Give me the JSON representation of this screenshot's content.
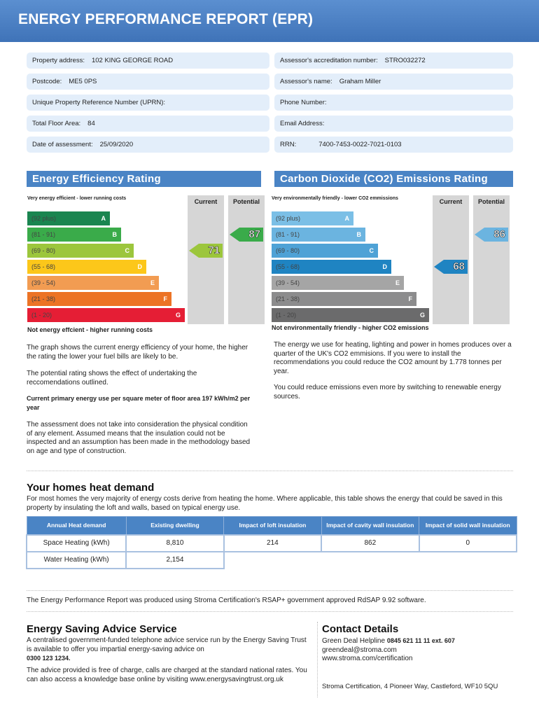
{
  "header": {
    "title": "ENERGY PERFORMANCE REPORT (EPR)"
  },
  "info_left": [
    {
      "label": "Property address:",
      "value": "102 KING GEORGE ROAD"
    },
    {
      "label": "Postcode:",
      "value": "ME5 0PS"
    },
    {
      "label": "Unique Property Reference Number (UPRN):",
      "value": ""
    },
    {
      "label": "Total Floor Area:",
      "value": "84"
    },
    {
      "label": "Date of assessment:",
      "value": "25/09/2020"
    }
  ],
  "info_right": [
    {
      "label": "Assessor's accreditation number:",
      "value": "STRO032272"
    },
    {
      "label": "Assessor's name:",
      "value": "Graham Miller"
    },
    {
      "label": "Phone Number:",
      "value": ""
    },
    {
      "label": "Email Address:",
      "value": ""
    },
    {
      "label": "RRN:",
      "value": "7400-7453-0022-7021-0103"
    }
  ],
  "energy": {
    "title": "Energy Efficiency Rating",
    "top_note": "Very energy efficient - lower running costs",
    "bottom_note": "Not energy effcient - higher running costs",
    "current_label": "Current",
    "potential_label": "Potential",
    "current": 71,
    "potential": 87,
    "current_color": "#9cc63c",
    "potential_color": "#3aab4a",
    "bands": [
      {
        "range": "(92 plus)",
        "letter": "A",
        "color": "#1a8550"
      },
      {
        "range": "(81 - 91)",
        "letter": "B",
        "color": "#3aab4a"
      },
      {
        "range": "(69 - 80)",
        "letter": "C",
        "color": "#9cc63c"
      },
      {
        "range": "(55 - 68)",
        "letter": "D",
        "color": "#fcc71a"
      },
      {
        "range": "(39 - 54)",
        "letter": "E",
        "color": "#f29c52"
      },
      {
        "range": "(21 - 38)",
        "letter": "F",
        "color": "#ec7325"
      },
      {
        "range": "(1 - 20)",
        "letter": "G",
        "color": "#e51e35"
      }
    ]
  },
  "co2": {
    "title": "Carbon Dioxide (CO2) Emissions Rating",
    "top_note": "Very environmentally friendly - lower CO2 emmissions",
    "bottom_note": "Not environmentally friendly - higher CO2 emissions",
    "current_label": "Current",
    "potential_label": "Potential",
    "current": 68,
    "potential": 86,
    "current_color": "#1f84c2",
    "potential_color": "#6bb4e0",
    "bands": [
      {
        "range": "(92 plus)",
        "letter": "A",
        "color": "#7bbfe6"
      },
      {
        "range": "(81 - 91)",
        "letter": "B",
        "color": "#6bb4e0"
      },
      {
        "range": "(69 - 80)",
        "letter": "C",
        "color": "#4ea2d6"
      },
      {
        "range": "(55 - 68)",
        "letter": "D",
        "color": "#1f84c2"
      },
      {
        "range": "(39 - 54)",
        "letter": "E",
        "color": "#a5a5a5"
      },
      {
        "range": "(21 - 38)",
        "letter": "F",
        "color": "#8c8c8d"
      },
      {
        "range": "(1 - 20)",
        "letter": "G",
        "color": "#6b6b6c"
      }
    ]
  },
  "left_text": {
    "p1": "The graph shows the current energy efficiency of your home, the higher the rating the lower your fuel bills are likely to be.",
    "p2": "The potential rating shows the effect of undertaking the reccomendations outlined.",
    "p3": "Current primary energy use per square meter of floor area 197 kWh/m2 per year",
    "p4": "The assessment does not take into consideration the physical condition of any element. Assumed means that the insulation could not be inspected and an assumption has been made in the methodology based on age and type of construction."
  },
  "right_text": {
    "p1": "The energy we use for heating, lighting and power in homes produces over a quarter of the UK's CO2 emmisions. If you were to install the recommendations you could reduce the CO2 amount by 1.778 tonnes per year.",
    "p2": "You could reduce emissions even more by switching to renewable energy sources."
  },
  "heat": {
    "title": "Your homes heat demand",
    "intro": "For most homes the very majority of energy costs derive from heating the home. Where applicable, this table shows the energy that could be saved in this property by insulating the loft and walls, based on typical energy use.",
    "headers": [
      "Annual Heat demand",
      "Existing dwelling",
      "Impact of loft insulation",
      "Impact of cavity wall insulation",
      "Impact of solid wall insulation"
    ],
    "rows": [
      [
        "Space Heating (kWh)",
        "8,810",
        "214",
        "862",
        "0"
      ],
      [
        "Water Heating (kWh)",
        "2,154"
      ]
    ]
  },
  "software_note": "The Energy Performance Report was produced using Stroma Certification's RSAP+ government approved RdSAP 9.92 software.",
  "advice": {
    "title": "Energy Saving Advice Service",
    "p1": "A centralised government-funded telephone advice service run by the Energy Saving Trust is available to offer you impartial energy-saving advice on",
    "phone": "0300 123 1234.",
    "p2": "The advice provided is free of charge, calls are charged at the standard national rates. You can also access a knowledge base online by visiting www.energysavingtrust.org.uk"
  },
  "contact": {
    "title": "Contact Details",
    "helpline_label": "Green Deal Helpline",
    "helpline": "0845 621 11 11 ext. 607",
    "email": "greendeal@stroma.com",
    "web": "www.stroma.com/certification",
    "address": "Stroma Certification, 4 Pioneer Way, Castleford, WF10 5QU"
  }
}
